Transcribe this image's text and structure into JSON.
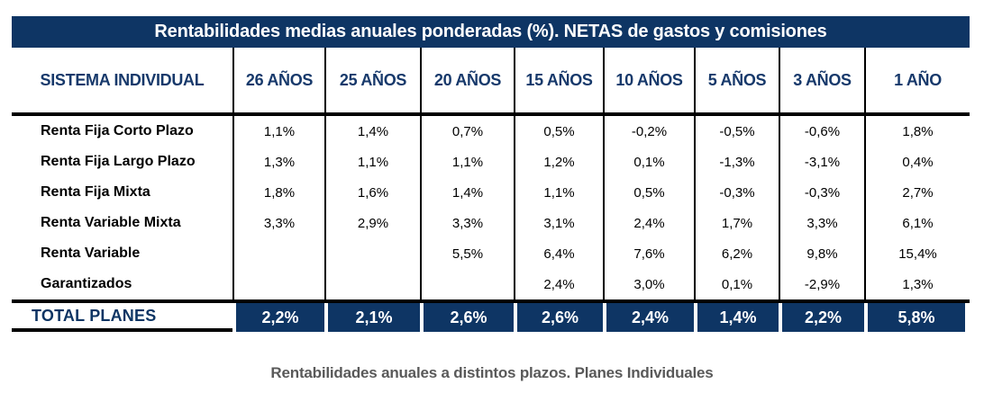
{
  "title": "Rentabilidades medias anuales ponderadas (%). NETAS de gastos y comisiones",
  "caption": "Rentabilidades anuales a distintos plazos. Planes Individuales",
  "colors": {
    "navy": "#0E3564",
    "header_text": "#17396B",
    "caption_gray": "#595959",
    "grid_line": "#000000",
    "total_text": "#ffffff"
  },
  "chart_data": {
    "type": "table",
    "title": "Rentabilidades medias anuales ponderadas (%). NETAS de gastos y comisiones",
    "row_header_label": "SISTEMA INDIVIDUAL",
    "columns": [
      "26 AÑOS",
      "25 AÑOS",
      "20 AÑOS",
      "15 AÑOS",
      "10 AÑOS",
      "5 AÑOS",
      "3 AÑOS",
      "1 AÑO"
    ],
    "rows": [
      {
        "label": "Renta Fija Corto Plazo",
        "values": [
          "1,1%",
          "1,4%",
          "0,7%",
          "0,5%",
          "-0,2%",
          "-0,5%",
          "-0,6%",
          "1,8%"
        ]
      },
      {
        "label": "Renta Fija Largo Plazo",
        "values": [
          "1,3%",
          "1,1%",
          "1,1%",
          "1,2%",
          "0,1%",
          "-1,3%",
          "-3,1%",
          "0,4%"
        ]
      },
      {
        "label": "Renta Fija Mixta",
        "values": [
          "1,8%",
          "1,6%",
          "1,4%",
          "1,1%",
          "0,5%",
          "-0,3%",
          "-0,3%",
          "2,7%"
        ]
      },
      {
        "label": "Renta Variable Mixta",
        "values": [
          "3,3%",
          "2,9%",
          "3,3%",
          "3,1%",
          "2,4%",
          "1,7%",
          "3,3%",
          "6,1%"
        ]
      },
      {
        "label": "Renta Variable",
        "values": [
          "",
          "",
          "5,5%",
          "6,4%",
          "7,6%",
          "6,2%",
          "9,8%",
          "15,4%"
        ]
      },
      {
        "label": "Garantizados",
        "values": [
          "",
          "",
          "",
          "2,4%",
          "3,0%",
          "0,1%",
          "-2,9%",
          "1,3%"
        ]
      }
    ],
    "total": {
      "label": "TOTAL PLANES",
      "values": [
        "2,2%",
        "2,1%",
        "2,6%",
        "2,6%",
        "2,4%",
        "1,4%",
        "2,2%",
        "5,8%"
      ]
    }
  }
}
